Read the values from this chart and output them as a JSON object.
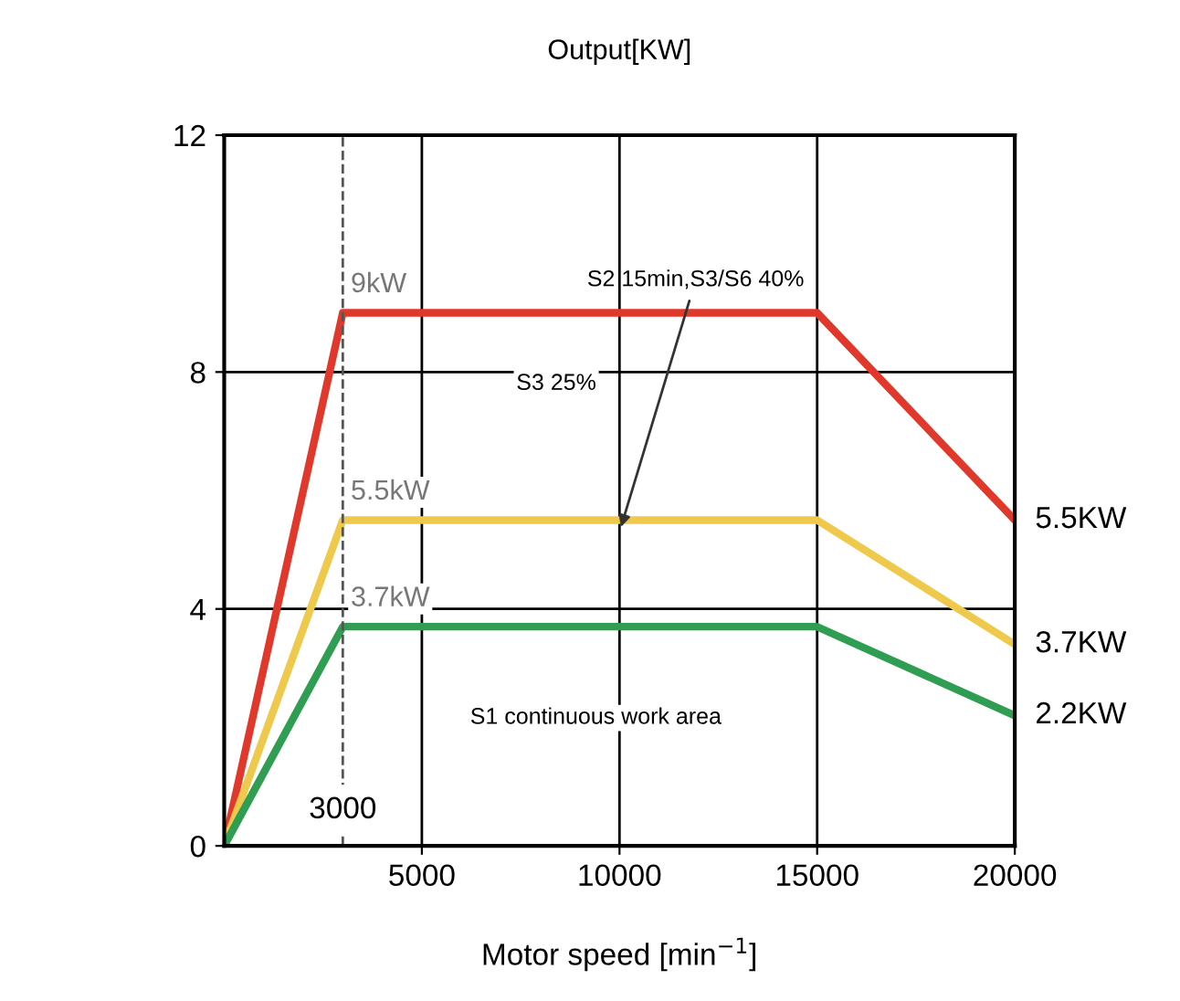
{
  "chart_data": {
    "type": "line",
    "title": "Output[KW]",
    "xlabel": "Motor speed [min$^{−1}$]",
    "xlim": [
      0,
      20000
    ],
    "ylim": [
      0,
      12
    ],
    "xticks": [
      5000,
      10000,
      15000,
      20000
    ],
    "yticks": [
      0,
      4,
      8,
      12
    ],
    "grid": true,
    "marker": "none",
    "line_style": "solid",
    "series": [
      {
        "color": "#e0392c",
        "x": [
          0,
          3000,
          15000,
          20000
        ],
        "values": [
          0,
          9,
          9,
          5.5
        ]
      },
      {
        "color": "#efc94c",
        "x": [
          0,
          3000,
          15000,
          20000
        ],
        "values": [
          0,
          5.5,
          5.5,
          3.4
        ]
      },
      {
        "color": "#2f9e52",
        "x": [
          0,
          3000,
          15000,
          20000
        ],
        "values": [
          0,
          3.7,
          3.7,
          2.2
        ]
      }
    ],
    "ref_lines": [
      {
        "axis": "x",
        "value": 3000,
        "label": "3000",
        "line_style": "dashed",
        "color": "#555555"
      }
    ],
    "annotations": [
      {
        "text": "9kW",
        "x": 3000,
        "y": 9
      },
      {
        "text": "5.5kW",
        "x": 3000,
        "y": 5.5
      },
      {
        "text": "3.7kW",
        "x": 3000,
        "y": 3.7
      },
      {
        "text": "5.5KW",
        "x": 20000,
        "y": 5.5
      },
      {
        "text": "3.7KW",
        "x": 20000,
        "y": 3.4
      },
      {
        "text": "2.2KW",
        "x": 20000,
        "y": 2.2
      },
      {
        "text": "S2 15min,S3/S6 40%",
        "x": 10000,
        "y": 5.3
      },
      "S3 25%",
      "S1 continuous work area"
    ]
  }
}
